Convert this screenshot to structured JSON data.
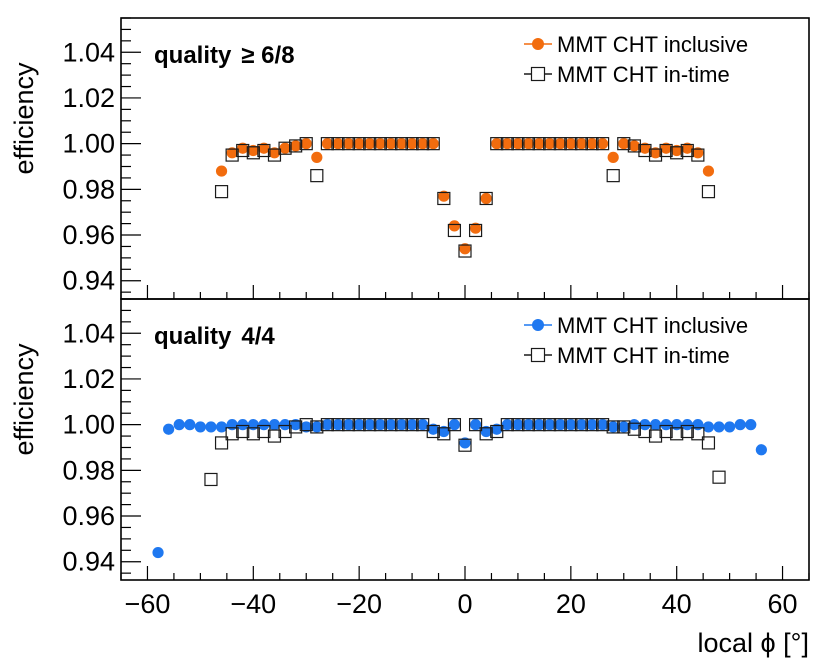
{
  "chart_data": [
    {
      "type": "scatter",
      "panel": "top",
      "label_prefix": "quality",
      "label_value": "≥ 6/8",
      "ylabel": "efficiency",
      "ylim": [
        0.932,
        1.055
      ],
      "yticks": [
        0.94,
        0.96,
        0.98,
        1.0,
        1.02,
        1.04
      ],
      "ytick_labels": [
        "0.94",
        "0.96",
        "0.98",
        "1.00",
        "1.02",
        "1.04"
      ],
      "legend_position": "top-right",
      "series": [
        {
          "name": "MMT CHT inclusive",
          "marker": "filled-circle",
          "color": "#f26c0e",
          "x": [
            -46,
            -44,
            -42,
            -40,
            -38,
            -36,
            -34,
            -32,
            -30,
            -28,
            -26,
            -24,
            -22,
            -20,
            -18,
            -16,
            -14,
            -12,
            -10,
            -8,
            -6,
            -4,
            -2,
            0,
            2,
            4,
            6,
            8,
            10,
            12,
            14,
            16,
            18,
            20,
            22,
            24,
            26,
            28,
            30,
            32,
            34,
            36,
            38,
            40,
            42,
            44,
            46
          ],
          "y": [
            0.988,
            0.996,
            0.998,
            0.997,
            0.998,
            0.996,
            0.998,
            0.999,
            1.0,
            0.994,
            1.0,
            1.0,
            1.0,
            1.0,
            1.0,
            1.0,
            1.0,
            1.0,
            1.0,
            1.0,
            1.0,
            0.977,
            0.964,
            0.954,
            0.963,
            0.976,
            1.0,
            1.0,
            1.0,
            1.0,
            1.0,
            1.0,
            1.0,
            1.0,
            1.0,
            1.0,
            1.0,
            0.994,
            1.0,
            0.999,
            0.998,
            0.996,
            0.998,
            0.997,
            0.998,
            0.996,
            0.988
          ]
        },
        {
          "name": "MMT CHT in-time",
          "marker": "open-square",
          "color": "#1a1a1a",
          "x": [
            -46,
            -44,
            -42,
            -40,
            -38,
            -36,
            -34,
            -32,
            -30,
            -28,
            -26,
            -24,
            -22,
            -20,
            -18,
            -16,
            -14,
            -12,
            -10,
            -8,
            -6,
            -4,
            -2,
            0,
            2,
            4,
            6,
            8,
            10,
            12,
            14,
            16,
            18,
            20,
            22,
            24,
            26,
            28,
            30,
            32,
            34,
            36,
            38,
            40,
            42,
            44,
            46
          ],
          "y": [
            0.979,
            0.995,
            0.997,
            0.996,
            0.997,
            0.995,
            0.998,
            0.999,
            1.0,
            0.986,
            1.0,
            1.0,
            1.0,
            1.0,
            1.0,
            1.0,
            1.0,
            1.0,
            1.0,
            1.0,
            1.0,
            0.976,
            0.962,
            0.953,
            0.962,
            0.976,
            1.0,
            1.0,
            1.0,
            1.0,
            1.0,
            1.0,
            1.0,
            1.0,
            1.0,
            1.0,
            1.0,
            0.986,
            1.0,
            0.999,
            0.997,
            0.995,
            0.997,
            0.996,
            0.997,
            0.995,
            0.979
          ]
        }
      ]
    },
    {
      "type": "scatter",
      "panel": "bottom",
      "label_prefix": "quality",
      "label_value": "4/4",
      "ylabel": "efficiency",
      "xlabel": "local ϕ [°]",
      "xlim": [
        -65,
        65
      ],
      "xticks": [
        -60,
        -40,
        -20,
        0,
        20,
        40,
        60
      ],
      "xtick_labels": [
        "−60",
        "−40",
        "−20",
        "0",
        "20",
        "40",
        "60"
      ],
      "ylim": [
        0.932,
        1.055
      ],
      "yticks": [
        0.94,
        0.96,
        0.98,
        1.0,
        1.02,
        1.04
      ],
      "ytick_labels": [
        "0.94",
        "0.96",
        "0.98",
        "1.00",
        "1.02",
        "1.04"
      ],
      "legend_position": "top-right",
      "series": [
        {
          "name": "MMT CHT inclusive",
          "marker": "filled-circle",
          "color": "#1f78f0",
          "x": [
            -58,
            -56,
            -54,
            -52,
            -50,
            -48,
            -46,
            -44,
            -42,
            -40,
            -38,
            -36,
            -34,
            -32,
            -30,
            -28,
            -26,
            -24,
            -22,
            -20,
            -18,
            -16,
            -14,
            -12,
            -10,
            -8,
            -6,
            -4,
            -2,
            0,
            2,
            4,
            6,
            8,
            10,
            12,
            14,
            16,
            18,
            20,
            22,
            24,
            26,
            28,
            30,
            32,
            34,
            36,
            38,
            40,
            42,
            44,
            46,
            48,
            50,
            52,
            54,
            56
          ],
          "y": [
            0.944,
            0.998,
            1.0,
            1.0,
            0.999,
            0.999,
            0.999,
            1.0,
            1.0,
            1.0,
            1.0,
            1.0,
            1.0,
            1.0,
            0.999,
            0.999,
            1.0,
            1.0,
            1.0,
            1.0,
            1.0,
            1.0,
            1.0,
            1.0,
            1.0,
            1.0,
            0.998,
            0.997,
            1.0,
            0.992,
            1.0,
            0.997,
            0.998,
            1.0,
            1.0,
            1.0,
            1.0,
            1.0,
            1.0,
            1.0,
            1.0,
            1.0,
            1.0,
            0.999,
            0.999,
            1.0,
            1.0,
            1.0,
            1.0,
            1.0,
            1.0,
            1.0,
            0.999,
            0.999,
            0.999,
            1.0,
            1.0,
            0.989
          ]
        },
        {
          "name": "MMT CHT in-time",
          "marker": "open-square",
          "color": "#1a1a1a",
          "x": [
            -48,
            -46,
            -44,
            -42,
            -40,
            -38,
            -36,
            -34,
            -32,
            -30,
            -28,
            -26,
            -24,
            -22,
            -20,
            -18,
            -16,
            -14,
            -12,
            -10,
            -8,
            -6,
            -4,
            -2,
            0,
            2,
            4,
            6,
            8,
            10,
            12,
            14,
            16,
            18,
            20,
            22,
            24,
            26,
            28,
            30,
            32,
            34,
            36,
            38,
            40,
            42,
            44,
            46,
            48
          ],
          "y": [
            0.976,
            0.992,
            0.996,
            0.997,
            0.996,
            0.997,
            0.995,
            0.997,
            0.999,
            1.0,
            0.999,
            1.0,
            1.0,
            1.0,
            1.0,
            1.0,
            1.0,
            1.0,
            1.0,
            1.0,
            1.0,
            0.997,
            0.996,
            1.0,
            0.991,
            1.0,
            0.996,
            0.997,
            1.0,
            1.0,
            1.0,
            1.0,
            1.0,
            1.0,
            1.0,
            1.0,
            1.0,
            1.0,
            0.999,
            0.999,
            0.998,
            0.997,
            0.995,
            0.997,
            0.996,
            0.997,
            0.996,
            0.992,
            0.977
          ]
        }
      ]
    }
  ]
}
